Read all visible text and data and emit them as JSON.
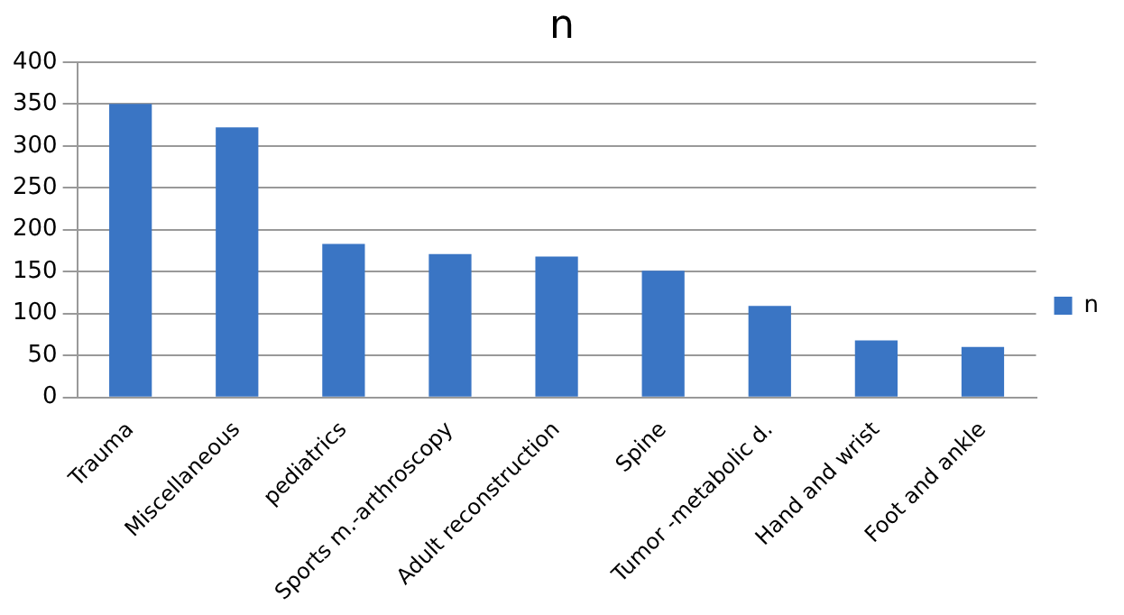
{
  "chart_data": {
    "type": "bar",
    "title": "n",
    "categories": [
      "Trauma",
      "Miscellaneous",
      "pediatrics",
      "Sports m.-arthroscopy",
      "Adult reconstruction",
      "Spine",
      "Tumor -metabolic d.",
      "Hand and wrist",
      "Foot and ankle"
    ],
    "series": [
      {
        "name": "n",
        "color": "#3a75c4",
        "values": [
          350,
          322,
          183,
          171,
          168,
          151,
          109,
          68,
          60
        ]
      }
    ],
    "ylim": [
      0,
      400
    ],
    "yticks": [
      0,
      50,
      100,
      150,
      200,
      250,
      300,
      350,
      400
    ],
    "grid": "y",
    "legend": "right"
  }
}
